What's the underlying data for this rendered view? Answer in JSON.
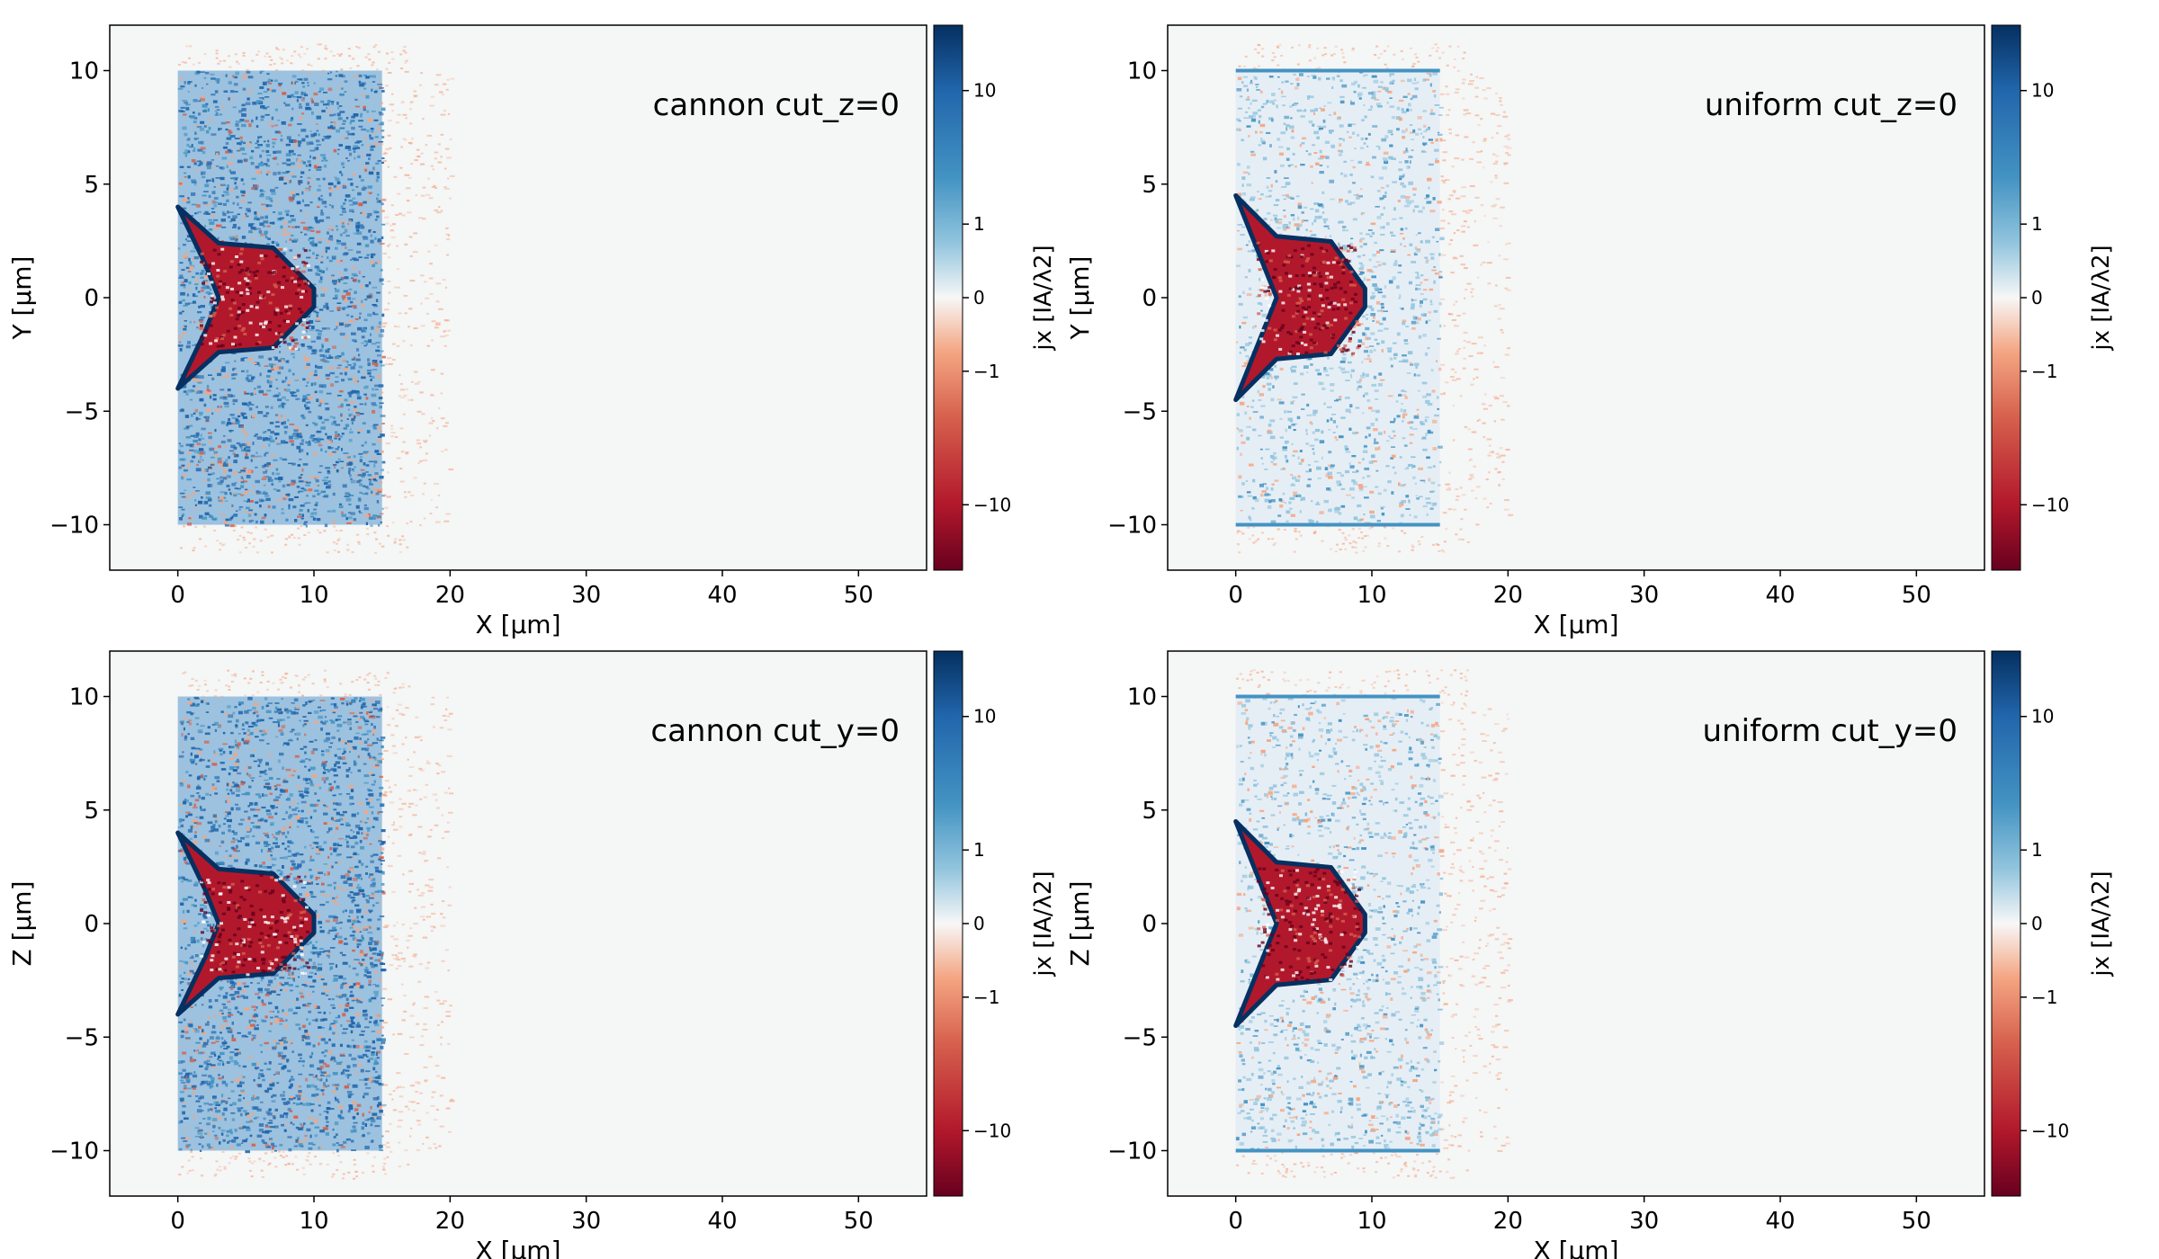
{
  "chart_data": [
    {
      "type": "heatmap",
      "title": "cannon cut_z=0",
      "xlabel": "X  [μm]",
      "ylabel": "Y  [μm]",
      "xlim": [
        -5,
        55
      ],
      "ylim": [
        -12,
        12
      ],
      "xticks": [
        "0",
        "10",
        "20",
        "30",
        "40",
        "50"
      ],
      "yticks": [
        "10",
        "5",
        "0",
        "−5",
        "−10"
      ],
      "colorbar": {
        "label": "jx  [IA/λ2]",
        "scale": "symlog",
        "ticks": [
          "10",
          "1",
          "0",
          "−1",
          "−10"
        ]
      },
      "profile": "cannon"
    },
    {
      "type": "heatmap",
      "title": "uniform cut_z=0",
      "xlabel": "X  [μm]",
      "ylabel": "Y  [μm]",
      "xlim": [
        -5,
        55
      ],
      "ylim": [
        -12,
        12
      ],
      "xticks": [
        "0",
        "10",
        "20",
        "30",
        "40",
        "50"
      ],
      "yticks": [
        "10",
        "5",
        "0",
        "−5",
        "−10"
      ],
      "colorbar": {
        "label": "jx  [IA/λ2]",
        "scale": "symlog",
        "ticks": [
          "10",
          "1",
          "0",
          "−1",
          "−10"
        ]
      },
      "profile": "uniform"
    },
    {
      "type": "heatmap",
      "title": "cannon cut_y=0",
      "xlabel": "X  [μm]",
      "ylabel": "Z  [μm]",
      "xlim": [
        -5,
        55
      ],
      "ylim": [
        -12,
        12
      ],
      "xticks": [
        "0",
        "10",
        "20",
        "30",
        "40",
        "50"
      ],
      "yticks": [
        "10",
        "5",
        "0",
        "−5",
        "−10"
      ],
      "colorbar": {
        "label": "jx  [IA/λ2]",
        "scale": "symlog",
        "ticks": [
          "10",
          "1",
          "0",
          "−1",
          "−10"
        ]
      },
      "profile": "cannon"
    },
    {
      "type": "heatmap",
      "title": "uniform cut_y=0",
      "xlabel": "X  [μm]",
      "ylabel": "Z  [μm]",
      "xlim": [
        -5,
        55
      ],
      "ylim": [
        -12,
        12
      ],
      "xticks": [
        "0",
        "10",
        "20",
        "30",
        "40",
        "50"
      ],
      "yticks": [
        "10",
        "5",
        "0",
        "−5",
        "−10"
      ],
      "colorbar": {
        "label": "jx  [IA/λ2]",
        "scale": "symlog",
        "ticks": [
          "10",
          "1",
          "0",
          "−1",
          "−10"
        ]
      },
      "profile": "uniform"
    }
  ],
  "colors": {
    "background": "#f5f6f6",
    "deep_red": "#67001f",
    "red": "#b2182b",
    "light_red": "#f4a582",
    "neutral": "#f7f7f7",
    "light_blue": "#92c5de",
    "blue": "#2166ac",
    "deep_blue": "#053061"
  }
}
